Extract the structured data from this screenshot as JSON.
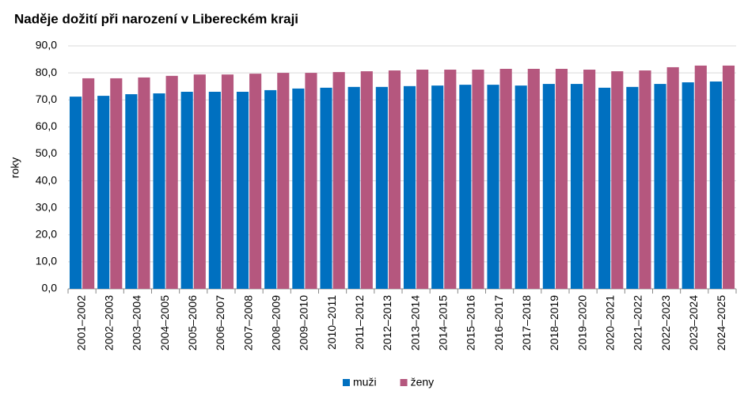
{
  "chart_data": {
    "type": "bar",
    "title": "Naděje dožití při narození v Libereckém kraji",
    "y_label": "roky",
    "categories": [
      "2001–2002",
      "2002–2003",
      "2003–2004",
      "2004–2005",
      "2005–2006",
      "2006–2007",
      "2007–2008",
      "2008–2009",
      "2009–2010",
      "2010–2011",
      "2011–2012",
      "2012–2013",
      "2013–2014",
      "2014–2015",
      "2015–2016",
      "2016–2017",
      "2017–2018",
      "2018–2019",
      "2019–2020",
      "2020–2021",
      "2021–2022",
      "2022–2023",
      "2023–2024",
      "2024–2025"
    ],
    "series": [
      {
        "name": "muži",
        "color": "#0070c0",
        "values": [
          71.2,
          71.5,
          72.1,
          72.4,
          73.0,
          73.0,
          73.0,
          73.6,
          74.2,
          74.5,
          74.8,
          74.8,
          75.1,
          75.3,
          75.6,
          75.6,
          75.3,
          75.9,
          75.9,
          74.5,
          74.8,
          75.9,
          76.5,
          76.8
        ]
      },
      {
        "name": "ženy",
        "color": "#b5577e",
        "values": [
          78.0,
          78.0,
          78.3,
          78.9,
          79.4,
          79.4,
          79.7,
          80.0,
          80.0,
          80.3,
          80.6,
          80.9,
          81.2,
          81.2,
          81.2,
          81.5,
          81.5,
          81.5,
          81.2,
          80.6,
          80.9,
          82.1,
          82.7,
          82.7
        ]
      }
    ],
    "ylim": [
      0,
      90
    ],
    "yticks": [
      {
        "value": 0,
        "label": "0,0"
      },
      {
        "value": 10,
        "label": "10,0"
      },
      {
        "value": 20,
        "label": "20,0"
      },
      {
        "value": 30,
        "label": "30,0"
      },
      {
        "value": 40,
        "label": "40,0"
      },
      {
        "value": 50,
        "label": "50,0"
      },
      {
        "value": 60,
        "label": "60,0"
      },
      {
        "value": 70,
        "label": "70,0"
      },
      {
        "value": 80,
        "label": "80,0"
      },
      {
        "value": 90,
        "label": "90,0"
      }
    ],
    "grid": true,
    "legend": "bottom"
  }
}
